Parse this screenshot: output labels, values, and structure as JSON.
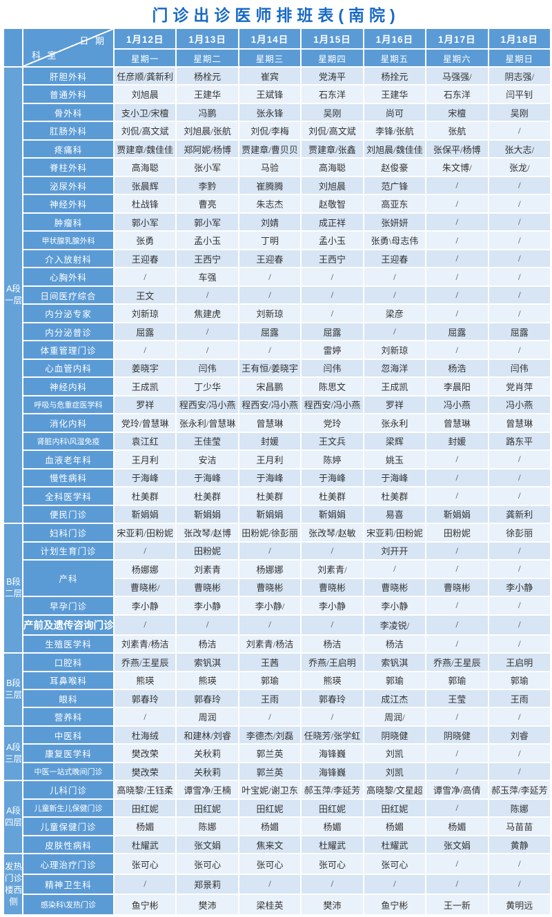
{
  "title": "门诊出诊医师排班表(南院)",
  "colors": {
    "title_blue": "#1669c5",
    "header_blue": "#5b9bd5",
    "group_blue": "#64a2d8",
    "stripe_dark": "#d7e5f4",
    "stripe_light": "#e9f1fa",
    "grid_white": "#ffffff",
    "cell_text": "#333333"
  },
  "header": {
    "dept_label": "科 室",
    "date_label": "日 期",
    "columns": [
      {
        "date": "1月12日",
        "weekday": "星期一"
      },
      {
        "date": "1月13日",
        "weekday": "星期二"
      },
      {
        "date": "1月14日",
        "weekday": "星期三"
      },
      {
        "date": "1月15日",
        "weekday": "星期四"
      },
      {
        "date": "1月16日",
        "weekday": "星期五"
      },
      {
        "date": "1月17日",
        "weekday": "星期六"
      },
      {
        "date": "1月18日",
        "weekday": "星期日"
      }
    ]
  },
  "sections": [
    {
      "label": "A段一层",
      "rows": [
        {
          "dept": "肝胆外科",
          "cells": [
            "任彦顺/龚新利",
            "杨栓元",
            "崔宾",
            "党涛平",
            "杨拴元",
            "马强强/",
            "阴志强/"
          ]
        },
        {
          "dept": "普通外科",
          "cells": [
            "刘旭晨",
            "王建华",
            "王斌锋",
            "石东洋",
            "王建华",
            "石东洋",
            "闫平钊"
          ]
        },
        {
          "dept": "骨外科",
          "cells": [
            "支小卫/宋檀",
            "冯鹏",
            "张永锋",
            "吴刚",
            "尚可",
            "宋檀",
            "吴刚"
          ]
        },
        {
          "dept": "肛肠外科",
          "cells": [
            "刘侃/高文斌",
            "刘旭晨/张航",
            "刘侃/李梅",
            "刘侃/高文斌",
            "李锋/张航",
            "张航",
            "/"
          ]
        },
        {
          "dept": "疼痛科",
          "cells": [
            "贾建章/魏佳佳",
            "郑阿妮/杨博",
            "贾建章/曹贝贝",
            "贾建章/张鑫",
            "刘旭晨/魏佳佳",
            "张保平/杨博",
            "张大志/"
          ]
        },
        {
          "dept": "脊柱外科",
          "cells": [
            "高海聪",
            "张小军",
            "马验",
            "高海聪",
            "赵俊豪",
            "朱文博/",
            "张龙/"
          ]
        },
        {
          "dept": "泌尿外科",
          "cells": [
            "张晨辉",
            "李黔",
            "崔腾腾",
            "刘旭晨",
            "范广锋",
            "/",
            "/"
          ]
        },
        {
          "dept": "神经外科",
          "cells": [
            "杜战锋",
            "曹亮",
            "朱志杰",
            "赵敬智",
            "高亚东",
            "/",
            "/"
          ]
        },
        {
          "dept": "肿瘤科",
          "cells": [
            "郭小军",
            "郭小军",
            "刘婧",
            "成正祥",
            "张妍妍",
            "/",
            "/"
          ]
        },
        {
          "dept": "甲状腺乳腺外科",
          "size": "sm",
          "cells": [
            "张勇",
            "孟小玉",
            "丁明",
            "孟小玉",
            "张勇\\母志伟",
            "/",
            "/"
          ]
        },
        {
          "dept": "介入放射科",
          "cells": [
            "王迎春",
            "王西宁",
            "王迎春",
            "王西宁",
            "王迎春",
            "/",
            "/"
          ]
        },
        {
          "dept": "心胸外科",
          "cells": [
            "/",
            "车强",
            "/",
            "/",
            "/",
            "/",
            "/"
          ]
        },
        {
          "dept": "日间医疗综合",
          "cells": [
            "王文",
            "/",
            "/",
            "/",
            "/",
            "/",
            "/"
          ]
        },
        {
          "dept": "内分泌专家",
          "cells": [
            "刘新琼",
            "焦建虎",
            "刘新琼",
            "/",
            "梁彦",
            "/",
            "/"
          ]
        },
        {
          "dept": "内分泌普诊",
          "cells": [
            "屈露",
            "/",
            "屈露",
            "屈露",
            "/",
            "屈露",
            "屈露"
          ]
        },
        {
          "dept": "体重管理门诊",
          "cells": [
            "/",
            "/",
            "/",
            "雷婷",
            "刘新琼",
            "/",
            "/"
          ]
        },
        {
          "dept": "心血管内科",
          "cells": [
            "姜晓宇",
            "闫伟",
            "王有恒/姜晓宇",
            "闫伟",
            "忽海洋",
            "杨浩",
            "闫伟"
          ]
        },
        {
          "dept": "神经内科",
          "cells": [
            "王成凯",
            "丁少华",
            "宋昌鹏",
            "陈思文",
            "王成凯",
            "李晨阳",
            "党肖萍"
          ]
        },
        {
          "dept": "呼吸与危重症医学科",
          "size": "sm",
          "cells": [
            "罗祥",
            "程西安/冯小燕",
            "程西安/冯小燕",
            "程西安/冯小燕",
            "罗祥",
            "冯小燕",
            "冯小燕"
          ]
        },
        {
          "dept": "消化内科",
          "cells": [
            "党玲/曾慧琳",
            "张永利/曾慧琳",
            "曾慧琳",
            "党玲",
            "张永利",
            "曾慧琳",
            "曾慧琳"
          ]
        },
        {
          "dept": "肾脏内科\\风湿免疫",
          "size": "sm",
          "cells": [
            "袁江红",
            "王佳莹",
            "封媛",
            "王文兵",
            "梁辉",
            "封媛",
            "路东平"
          ]
        },
        {
          "dept": "血液老年科",
          "cells": [
            "王月利",
            "安洁",
            "王月利",
            "陈婷",
            "姚玉",
            "/",
            "/"
          ]
        },
        {
          "dept": "慢性病科",
          "cells": [
            "于海峰",
            "于海峰",
            "于海峰",
            "于海峰",
            "于海峰",
            "/",
            "/"
          ]
        },
        {
          "dept": "全科医学科",
          "cells": [
            "杜美群",
            "杜美群",
            "杜美群",
            "杜美群",
            "杜美群",
            "/",
            "/"
          ]
        },
        {
          "dept": "便民门诊",
          "cells": [
            "靳娟娟",
            "靳娟娟",
            "靳娟娟",
            "靳娟娟",
            "易喜",
            "靳娟娟",
            "龚新利"
          ]
        }
      ]
    },
    {
      "label": "B段二层",
      "rows": [
        {
          "dept": "妇科门诊",
          "cells": [
            "宋亚莉/田粉妮",
            "张改琴/赵博",
            "田粉妮/徐彭丽",
            "张改琴/赵敏",
            "宋亚莉/田粉妮",
            "田粉妮",
            "徐彭丽"
          ]
        },
        {
          "dept": "计划生育门诊",
          "cells": [
            "/",
            "田粉妮",
            "/",
            "/",
            "刘开开",
            "/",
            "/"
          ]
        },
        {
          "dept": "产科",
          "span": 2,
          "cells": [
            "杨娜娜",
            "刘素青",
            "杨娜娜",
            "刘素青/",
            "/",
            "/",
            "/"
          ]
        },
        {
          "dept": null,
          "cells": [
            "曹晓彬/",
            "曹晓彬",
            "曹晓彬",
            "曹晓彬",
            "曹晓彬",
            "曹晓彬",
            "李小静"
          ]
        },
        {
          "dept": "早孕门诊",
          "cells": [
            "李小静",
            "李小静",
            "李小静/",
            "李小静",
            "李小静",
            "/",
            "/"
          ]
        },
        {
          "dept": "产前及遗传咨询门诊",
          "size": "lg",
          "cells": [
            "/",
            "/",
            "/",
            "/",
            "李凌锐/",
            "/",
            "/"
          ]
        },
        {
          "dept": "生殖医学科",
          "cells": [
            "刘素青/杨洁",
            "杨洁",
            "刘素青/杨洁",
            "杨洁",
            "杨洁",
            "/",
            "/"
          ]
        }
      ]
    },
    {
      "label": "B段三层",
      "rows": [
        {
          "dept": "口腔科",
          "cells": [
            "乔燕/王星辰",
            "索钒淇",
            "王茜",
            "乔燕/王启明",
            "索钒淇",
            "乔燕/王星辰",
            "王启明"
          ]
        },
        {
          "dept": "耳鼻喉科",
          "cells": [
            "熊瑛",
            "熊瑛",
            "郭瑜",
            "熊瑛",
            "郭瑜",
            "郭瑜",
            "郭瑜"
          ]
        },
        {
          "dept": "眼科",
          "cells": [
            "郭春玲",
            "郭春玲",
            "王雨",
            "郭春玲",
            "成江杰",
            "王莹",
            "王雨"
          ]
        },
        {
          "dept": "营养科",
          "cells": [
            "/",
            "周润",
            "/",
            "/",
            "周润/",
            "/",
            "/"
          ]
        }
      ]
    },
    {
      "label": "A段三层",
      "rows": [
        {
          "dept": "中医科",
          "cells": [
            "杜海绒",
            "和建林/刘睿",
            "李德杰/刘磊",
            "任晓芳/张学虹",
            "阴晓健",
            "阴晓健",
            "刘睿"
          ]
        },
        {
          "dept": "康复医学科",
          "cells": [
            "樊改荣",
            "关秋莉",
            "郭兰英",
            "海锋巍",
            "刘凯",
            "/",
            "/"
          ]
        },
        {
          "dept": "中医一站式晚间门诊",
          "size": "sm",
          "cells": [
            "樊改荣",
            "关秋莉",
            "郭兰英",
            "海锋巍",
            "刘凯",
            "/",
            "/"
          ]
        }
      ]
    },
    {
      "label": "A段四层",
      "rows": [
        {
          "dept": "儿科门诊",
          "cells": [
            "高晓黎/王钰柔",
            "谭雪净/王楠",
            "叶宝妮/谢卫东",
            "郝玉萍/李延芳",
            "高晓黎/文星超",
            "谭雪净/高倩",
            "郝玉萍/李延芳"
          ]
        },
        {
          "dept": "儿童新生儿保健门诊",
          "size": "sm",
          "cells": [
            "田红妮",
            "田红妮",
            "田红妮",
            "田红妮",
            "田红妮",
            "/",
            "陈娜"
          ]
        },
        {
          "dept": "儿童保健门诊",
          "cells": [
            "杨媚",
            "陈娜",
            "杨媚",
            "杨媚",
            "杨媚",
            "杨媚",
            "马苗苗"
          ]
        },
        {
          "dept": "皮肤性病科",
          "cells": [
            "杜耀武",
            "张文娟",
            "焦来文",
            "杜耀武",
            "杜耀武",
            "张文娟",
            "黄静"
          ]
        }
      ]
    },
    {
      "label": "发热门诊楼西侧",
      "rows": [
        {
          "dept": "心理治疗门诊",
          "cells": [
            "张可心",
            "张可心",
            "张可心",
            "张可心",
            "张可心",
            "/",
            "/"
          ]
        },
        {
          "dept": "精神卫生科",
          "cells": [
            "/",
            "郑景莉",
            "/",
            "/",
            "/",
            "/",
            "/"
          ]
        },
        {
          "dept": "感染科\\发热门诊",
          "size": "sm",
          "cells": [
            "鱼宁彬",
            "樊沛",
            "梁桂英",
            "樊沛",
            "鱼宁彬",
            "王一新",
            "黄明远"
          ]
        }
      ]
    }
  ]
}
